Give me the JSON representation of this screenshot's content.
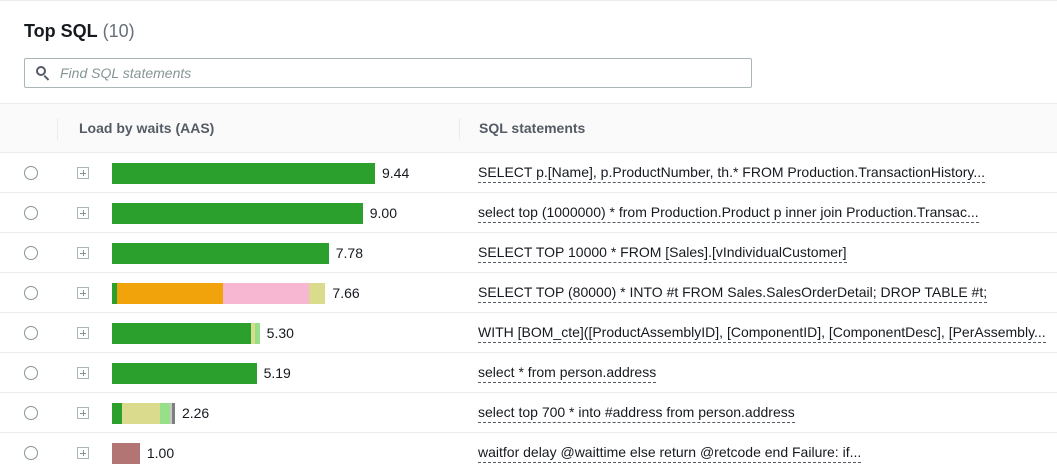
{
  "panel": {
    "title": "Top SQL",
    "count": "(10)"
  },
  "search": {
    "placeholder": "Find SQL statements",
    "value": ""
  },
  "table": {
    "columns": {
      "load": "Load by waits (AAS)",
      "sql": "SQL statements"
    },
    "max_load": 9.44,
    "rows": [
      {
        "load": "9.44",
        "sql": "SELECT p.[Name], p.ProductNumber, th.* FROM Production.TransactionHistory...",
        "segments": [
          {
            "value": 9.44,
            "color": "#2ca02c"
          }
        ]
      },
      {
        "load": "9.00",
        "sql": "select top (1000000) * from Production.Product p  inner join Production.Transac...",
        "segments": [
          {
            "value": 9.0,
            "color": "#2ca02c"
          }
        ]
      },
      {
        "load": "7.78",
        "sql": "SELECT TOP 10000 * FROM [Sales].[vIndividualCustomer]",
        "segments": [
          {
            "value": 7.78,
            "color": "#2ca02c"
          }
        ]
      },
      {
        "load": "7.66",
        "sql": "SELECT TOP (80000) * INTO #t FROM Sales.SalesOrderDetail; DROP TABLE #t;",
        "segments": [
          {
            "value": 0.18,
            "color": "#2ca02c"
          },
          {
            "value": 3.82,
            "color": "#f0a30a"
          },
          {
            "value": 3.06,
            "color": "#f7b6d2"
          },
          {
            "value": 0.6,
            "color": "#dbdb8d"
          }
        ]
      },
      {
        "load": "5.30",
        "sql": "WITH [BOM_cte]([ProductAssemblyID], [ComponentID], [ComponentDesc], [PerAssembly...",
        "segments": [
          {
            "value": 5.0,
            "color": "#2ca02c"
          },
          {
            "value": 0.15,
            "color": "#dbdb8d"
          },
          {
            "value": 0.15,
            "color": "#98df8a"
          }
        ]
      },
      {
        "load": "5.19",
        "sql": "select * from person.address",
        "segments": [
          {
            "value": 5.19,
            "color": "#2ca02c"
          }
        ]
      },
      {
        "load": "2.26",
        "sql": "select top 700 * into #address from person.address",
        "segments": [
          {
            "value": 0.36,
            "color": "#2ca02c"
          },
          {
            "value": 1.38,
            "color": "#dbdb8d"
          },
          {
            "value": 0.36,
            "color": "#98df8a"
          },
          {
            "value": 0.04,
            "color": "#c7c7c7"
          },
          {
            "value": 0.12,
            "color": "#7f7f7f"
          }
        ]
      },
      {
        "load": "1.00",
        "sql": "waitfor delay @waittime else return @retcode  end  Failure: if...",
        "segments": [
          {
            "value": 1.0,
            "color": "#b37474"
          }
        ]
      }
    ]
  }
}
